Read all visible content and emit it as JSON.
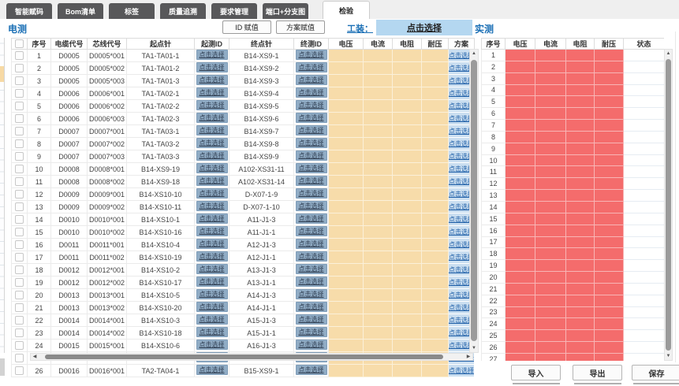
{
  "tabs": {
    "items": [
      {
        "label": "智能赋码"
      },
      {
        "label": "Bom清单"
      },
      {
        "label": "标签"
      },
      {
        "label": "质量追溯"
      },
      {
        "label": "要求管理"
      },
      {
        "label": "端口+分支图"
      }
    ],
    "active": "检验"
  },
  "toolbar": {
    "left_section_label": "电测",
    "id_assign_button": "ID 赋值",
    "plan_assign_button": "方案赋值",
    "fixture_label": "工装：",
    "fixture_select_button": "点击选择",
    "right_section_label": "实测"
  },
  "left_table": {
    "headers": [
      "序号",
      "电缆代号",
      "芯线代号",
      "起点针",
      "起测ID",
      "终点针",
      "终测ID",
      "电压",
      "电流",
      "电阻",
      "耐压",
      "方案"
    ],
    "select_link_label": "点击选择",
    "rows": [
      {
        "no": "1",
        "cable": "D0005",
        "core": "D0005*001",
        "start_pin": "TA1-TA01-1",
        "end_pin": "B14-XS9-1"
      },
      {
        "no": "2",
        "cable": "D0005",
        "core": "D0005*002",
        "start_pin": "TA1-TA01-2",
        "end_pin": "B14-XS9-2"
      },
      {
        "no": "3",
        "cable": "D0005",
        "core": "D0005*003",
        "start_pin": "TA1-TA01-3",
        "end_pin": "B14-XS9-3"
      },
      {
        "no": "4",
        "cable": "D0006",
        "core": "D0006*001",
        "start_pin": "TA1-TA02-1",
        "end_pin": "B14-XS9-4"
      },
      {
        "no": "5",
        "cable": "D0006",
        "core": "D0006*002",
        "start_pin": "TA1-TA02-2",
        "end_pin": "B14-XS9-5"
      },
      {
        "no": "6",
        "cable": "D0006",
        "core": "D0006*003",
        "start_pin": "TA1-TA02-3",
        "end_pin": "B14-XS9-6"
      },
      {
        "no": "7",
        "cable": "D0007",
        "core": "D0007*001",
        "start_pin": "TA1-TA03-1",
        "end_pin": "B14-XS9-7"
      },
      {
        "no": "8",
        "cable": "D0007",
        "core": "D0007*002",
        "start_pin": "TA1-TA03-2",
        "end_pin": "B14-XS9-8"
      },
      {
        "no": "9",
        "cable": "D0007",
        "core": "D0007*003",
        "start_pin": "TA1-TA03-3",
        "end_pin": "B14-XS9-9"
      },
      {
        "no": "10",
        "cable": "D0008",
        "core": "D0008*001",
        "start_pin": "B14-XS9-19",
        "end_pin": "A102-XS31-11"
      },
      {
        "no": "11",
        "cable": "D0008",
        "core": "D0008*002",
        "start_pin": "B14-XS9-18",
        "end_pin": "A102-XS31-14"
      },
      {
        "no": "12",
        "cable": "D0009",
        "core": "D0009*001",
        "start_pin": "B14-XS10-10",
        "end_pin": "D-X07-1-9"
      },
      {
        "no": "13",
        "cable": "D0009",
        "core": "D0009*002",
        "start_pin": "B14-XS10-11",
        "end_pin": "D-X07-1-10"
      },
      {
        "no": "14",
        "cable": "D0010",
        "core": "D0010*001",
        "start_pin": "B14-XS10-1",
        "end_pin": "A11-J1-3"
      },
      {
        "no": "15",
        "cable": "D0010",
        "core": "D0010*002",
        "start_pin": "B14-XS10-16",
        "end_pin": "A11-J1-1"
      },
      {
        "no": "16",
        "cable": "D0011",
        "core": "D0011*001",
        "start_pin": "B14-XS10-4",
        "end_pin": "A12-J1-3"
      },
      {
        "no": "17",
        "cable": "D0011",
        "core": "D0011*002",
        "start_pin": "B14-XS10-19",
        "end_pin": "A12-J1-1"
      },
      {
        "no": "18",
        "cable": "D0012",
        "core": "D0012*001",
        "start_pin": "B14-XS10-2",
        "end_pin": "A13-J1-3"
      },
      {
        "no": "19",
        "cable": "D0012",
        "core": "D0012*002",
        "start_pin": "B14-XS10-17",
        "end_pin": "A13-J1-1"
      },
      {
        "no": "20",
        "cable": "D0013",
        "core": "D0013*001",
        "start_pin": "B14-XS10-5",
        "end_pin": "A14-J1-3"
      },
      {
        "no": "21",
        "cable": "D0013",
        "core": "D0013*002",
        "start_pin": "B14-XS10-20",
        "end_pin": "A14-J1-1"
      },
      {
        "no": "22",
        "cable": "D0014",
        "core": "D0014*001",
        "start_pin": "B14-XS10-3",
        "end_pin": "A15-J1-3"
      },
      {
        "no": "23",
        "cable": "D0014",
        "core": "D0014*002",
        "start_pin": "B14-XS10-18",
        "end_pin": "A15-J1-1"
      },
      {
        "no": "24",
        "cable": "D0015",
        "core": "D0015*001",
        "start_pin": "B14-XS10-6",
        "end_pin": "A16-J1-3"
      },
      {
        "no": "25",
        "cable": "D0015",
        "core": "D0015*002",
        "start_pin": "B14-XS10-21",
        "end_pin": "A16-J1-1"
      },
      {
        "no": "26",
        "cable": "D0016",
        "core": "D0016*001",
        "start_pin": "TA2-TA04-1",
        "end_pin": "B15-XS9-1"
      }
    ]
  },
  "right_table": {
    "headers": [
      "序号",
      "电压",
      "电流",
      "电阻",
      "耐压",
      "状态"
    ],
    "row_count": 27
  },
  "footer": {
    "import_button": "导入",
    "export_button": "导出",
    "save_button": "保存"
  },
  "icons": {
    "scroll_up": "▲",
    "scroll_down": "▼",
    "scroll_left": "◀",
    "scroll_right": "▶"
  },
  "colors": {
    "tab_dark": "#58585a",
    "section_label_blue": "#1a6fb5",
    "fixture_button_bg": "#b4d7f0",
    "measure_id_button_bg": "#90acc5",
    "empty_measure_cell": "#f7dcaa",
    "plan_cell_bg": "#cadef0",
    "result_cell_red": "#f46c6c"
  }
}
